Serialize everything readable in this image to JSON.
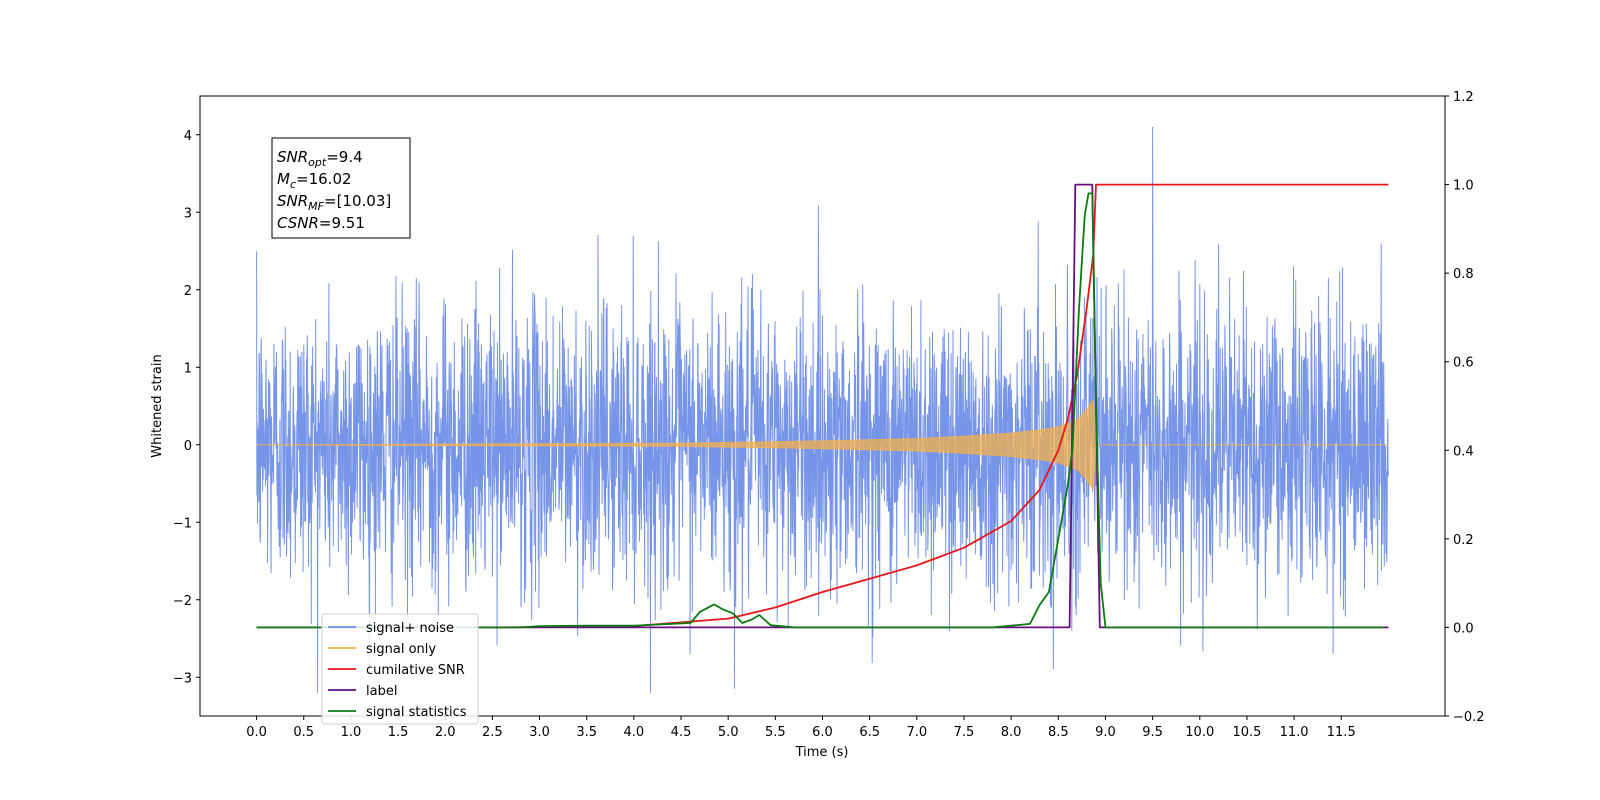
{
  "chart_data": {
    "type": "line",
    "xlabel": "Time (s)",
    "ylabel": "Whitened strain",
    "xlim": [
      -0.6,
      12.6
    ],
    "ylim": [
      -3.5,
      4.5
    ],
    "y2lim": [
      -0.2,
      1.2
    ],
    "grid": false,
    "legend_position": "lower-left",
    "x_tick_labels": [
      "0.0",
      "0.5",
      "1.0",
      "1.5",
      "2.0",
      "2.5",
      "3.0",
      "3.5",
      "4.0",
      "4.5",
      "5.0",
      "5.5",
      "6.0",
      "6.5",
      "7.0",
      "7.5",
      "8.0",
      "8.5",
      "9.0",
      "9.5",
      "10.0",
      "10.5",
      "11.0",
      "11.5"
    ],
    "y_tick_labels": [
      "−3",
      "−2",
      "−1",
      "0",
      "1",
      "2",
      "3",
      "4"
    ],
    "y2_tick_labels": [
      "−0.2",
      "0.0",
      "0.2",
      "0.4",
      "0.6",
      "0.8",
      "1.0",
      "1.2"
    ],
    "annotation": {
      "lines": [
        {
          "base": "SNR",
          "sub": "opt",
          "rest": "=9.4"
        },
        {
          "base": "M",
          "sub": "c",
          "rest": "=16.02"
        },
        {
          "base": "SNR",
          "sub": "MF",
          "rest": "=[10.03]"
        },
        {
          "base": "CSNR",
          "sub": "",
          "rest": "=9.51"
        }
      ]
    },
    "series": [
      {
        "name": "signal+ noise",
        "axis": "left",
        "color": "#6a8be6",
        "description_values": {
          "x_range": [
            0,
            12
          ],
          "amplitude_std": 0.9,
          "max": 4.1,
          "min": -3.15
        }
      },
      {
        "name": "signal only",
        "axis": "left",
        "color": "#f5b04b",
        "points": [
          [
            0,
            0
          ],
          [
            4.5,
            0.02
          ],
          [
            5.0,
            0.03
          ],
          [
            6.0,
            0.05
          ],
          [
            7.0,
            0.08
          ],
          [
            7.5,
            0.11
          ],
          [
            8.0,
            0.15
          ],
          [
            8.3,
            0.19
          ],
          [
            8.5,
            0.23
          ],
          [
            8.7,
            0.32
          ],
          [
            8.8,
            0.45
          ],
          [
            8.87,
            0.58
          ],
          [
            8.9,
            0
          ],
          [
            12,
            0
          ]
        ]
      },
      {
        "name": "cumilative SNR",
        "axis": "right",
        "color": "#e8161b",
        "points": [
          [
            2.5,
            0
          ],
          [
            4.0,
            0.003
          ],
          [
            5.0,
            0.02
          ],
          [
            5.5,
            0.045
          ],
          [
            6.0,
            0.08
          ],
          [
            6.5,
            0.11
          ],
          [
            7.0,
            0.14
          ],
          [
            7.5,
            0.18
          ],
          [
            8.0,
            0.24
          ],
          [
            8.3,
            0.31
          ],
          [
            8.5,
            0.4
          ],
          [
            8.6,
            0.47
          ],
          [
            8.7,
            0.57
          ],
          [
            8.8,
            0.72
          ],
          [
            8.87,
            0.84
          ],
          [
            8.9,
            1.0
          ],
          [
            12,
            1.0
          ]
        ]
      },
      {
        "name": "label",
        "axis": "right",
        "color": "#6a0f7e",
        "points": [
          [
            0,
            0
          ],
          [
            8.62,
            0
          ],
          [
            8.68,
            1.0
          ],
          [
            8.86,
            1.0
          ],
          [
            8.94,
            0
          ],
          [
            12,
            0
          ]
        ]
      },
      {
        "name": "signal statistics",
        "axis": "right",
        "color": "#0d7a12",
        "points": [
          [
            0,
            0
          ],
          [
            2.8,
            0
          ],
          [
            3.0,
            0.003
          ],
          [
            3.5,
            0.004
          ],
          [
            4.0,
            0.004
          ],
          [
            4.4,
            0.008
          ],
          [
            4.6,
            0.01
          ],
          [
            4.7,
            0.035
          ],
          [
            4.85,
            0.052
          ],
          [
            4.95,
            0.04
          ],
          [
            5.05,
            0.032
          ],
          [
            5.15,
            0.01
          ],
          [
            5.25,
            0.018
          ],
          [
            5.33,
            0.028
          ],
          [
            5.45,
            0.005
          ],
          [
            5.7,
            0
          ],
          [
            7.8,
            0
          ],
          [
            8.0,
            0.004
          ],
          [
            8.2,
            0.008
          ],
          [
            8.3,
            0.05
          ],
          [
            8.4,
            0.08
          ],
          [
            8.5,
            0.2
          ],
          [
            8.6,
            0.32
          ],
          [
            8.65,
            0.4
          ],
          [
            8.72,
            0.72
          ],
          [
            8.78,
            0.93
          ],
          [
            8.82,
            0.98
          ],
          [
            8.86,
            0.98
          ],
          [
            8.9,
            0.5
          ],
          [
            8.95,
            0.1
          ],
          [
            9.0,
            0
          ],
          [
            11.95,
            0
          ]
        ]
      }
    ]
  }
}
